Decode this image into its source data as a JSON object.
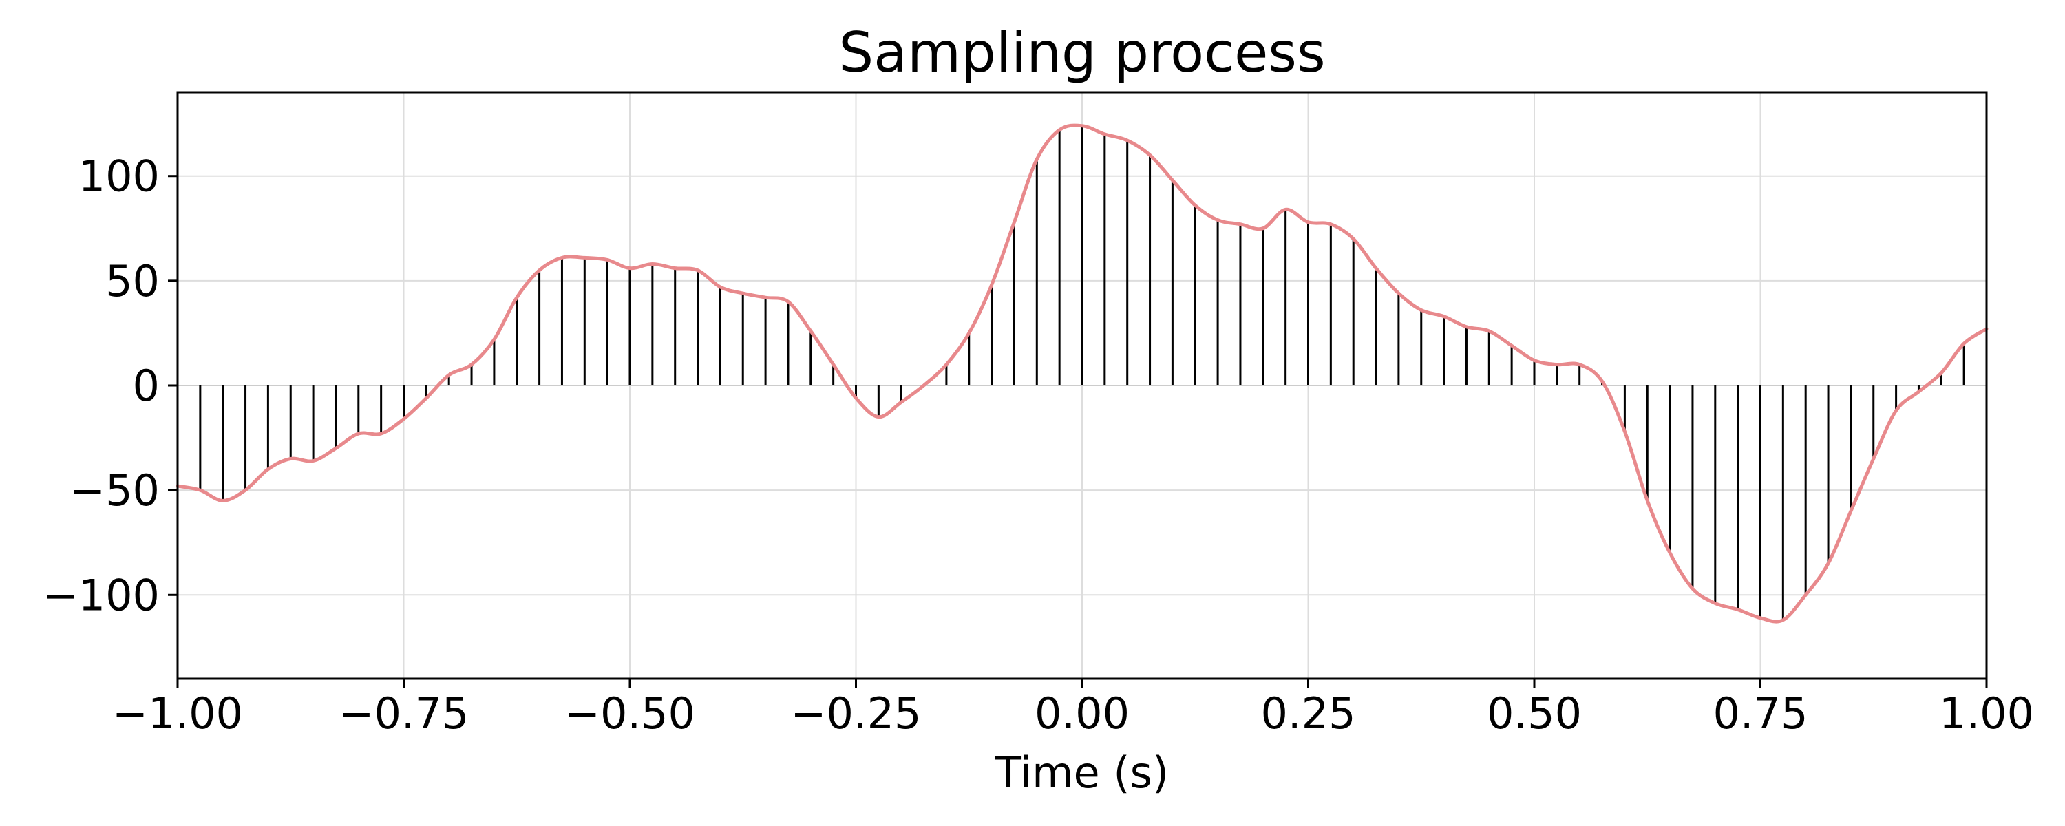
{
  "chart_data": {
    "type": "line",
    "title": "Sampling process",
    "xlabel": "Time (s)",
    "ylabel": "",
    "xlim": [
      -1.0,
      1.0
    ],
    "ylim": [
      -140,
      140
    ],
    "grid": true,
    "legend": "none",
    "x_ticks": [
      "−1.00",
      "−0.75",
      "−0.50",
      "−0.25",
      "0.00",
      "0.25",
      "0.50",
      "0.75",
      "1.00"
    ],
    "x_tick_values": [
      -1.0,
      -0.75,
      -0.5,
      -0.25,
      0.0,
      0.25,
      0.5,
      0.75,
      1.0
    ],
    "y_ticks": [
      "−100",
      "−50",
      "0",
      "50",
      "100"
    ],
    "y_tick_values": [
      -100,
      -50,
      0,
      50,
      100
    ],
    "colors": {
      "signal": "#e8898c",
      "stem": "#000000",
      "grid": "#dddddd"
    },
    "series": [
      {
        "type": "line",
        "x": [
          -1.0,
          -0.975,
          -0.95,
          -0.925,
          -0.9,
          -0.875,
          -0.85,
          -0.825,
          -0.8,
          -0.775,
          -0.75,
          -0.725,
          -0.7,
          -0.675,
          -0.65,
          -0.625,
          -0.6,
          -0.575,
          -0.55,
          -0.525,
          -0.5,
          -0.475,
          -0.45,
          -0.425,
          -0.4,
          -0.375,
          -0.35,
          -0.325,
          -0.3,
          -0.275,
          -0.25,
          -0.225,
          -0.2,
          -0.175,
          -0.15,
          -0.125,
          -0.1,
          -0.075,
          -0.05,
          -0.025,
          0.0,
          0.025,
          0.05,
          0.075,
          0.1,
          0.125,
          0.15,
          0.175,
          0.2,
          0.225,
          0.25,
          0.275,
          0.3,
          0.325,
          0.35,
          0.375,
          0.4,
          0.425,
          0.45,
          0.475,
          0.5,
          0.525,
          0.55,
          0.575,
          0.6,
          0.625,
          0.65,
          0.675,
          0.7,
          0.725,
          0.75,
          0.775,
          0.8,
          0.825,
          0.85,
          0.875,
          0.9,
          0.925,
          0.95,
          0.975,
          1.0
        ],
        "y": [
          -48,
          -50,
          -55,
          -50,
          -40,
          -35,
          -36,
          -30,
          -23,
          -23,
          -16,
          -6,
          5,
          10,
          22,
          42,
          55,
          61,
          61,
          60,
          56,
          58,
          56,
          55,
          47,
          44,
          42,
          40,
          26,
          10,
          -6,
          -15,
          -8,
          0,
          10,
          25,
          48,
          78,
          108,
          122,
          124,
          120,
          117,
          110,
          98,
          86,
          79,
          77,
          75,
          84,
          78,
          77,
          70,
          56,
          44,
          36,
          33,
          28,
          26,
          19,
          12,
          10,
          10,
          2,
          -22,
          -55,
          -80,
          -97,
          -104,
          -107,
          -111,
          -112,
          -100,
          -85,
          -60,
          -35,
          -12,
          -3,
          6,
          20,
          27
        ]
      },
      {
        "type": "stem",
        "x": [
          -0.975,
          -0.95,
          -0.925,
          -0.9,
          -0.875,
          -0.85,
          -0.825,
          -0.8,
          -0.775,
          -0.75,
          -0.725,
          -0.7,
          -0.675,
          -0.65,
          -0.625,
          -0.6,
          -0.575,
          -0.55,
          -0.525,
          -0.5,
          -0.475,
          -0.45,
          -0.425,
          -0.4,
          -0.375,
          -0.35,
          -0.325,
          -0.3,
          -0.275,
          -0.25,
          -0.225,
          -0.2,
          -0.175,
          -0.15,
          -0.125,
          -0.1,
          -0.075,
          -0.05,
          -0.025,
          0.0,
          0.025,
          0.05,
          0.075,
          0.1,
          0.125,
          0.15,
          0.175,
          0.2,
          0.225,
          0.25,
          0.275,
          0.3,
          0.325,
          0.35,
          0.375,
          0.4,
          0.425,
          0.45,
          0.475,
          0.5,
          0.525,
          0.55,
          0.575,
          0.6,
          0.625,
          0.65,
          0.675,
          0.7,
          0.725,
          0.75,
          0.775,
          0.8,
          0.825,
          0.85,
          0.875,
          0.9,
          0.925,
          0.95,
          0.975
        ],
        "y": [
          -50,
          -55,
          -50,
          -40,
          -35,
          -36,
          -30,
          -23,
          -23,
          -16,
          -6,
          5,
          10,
          22,
          42,
          55,
          61,
          61,
          60,
          56,
          58,
          56,
          55,
          47,
          44,
          42,
          40,
          26,
          10,
          -6,
          -15,
          -8,
          0,
          10,
          25,
          48,
          78,
          108,
          122,
          124,
          120,
          117,
          110,
          98,
          86,
          79,
          77,
          75,
          84,
          78,
          77,
          70,
          56,
          44,
          36,
          33,
          28,
          26,
          19,
          12,
          10,
          10,
          2,
          -22,
          -55,
          -80,
          -97,
          -104,
          -107,
          -111,
          -112,
          -100,
          -85,
          -60,
          -35,
          -12,
          -3,
          6,
          20
        ]
      }
    ]
  }
}
